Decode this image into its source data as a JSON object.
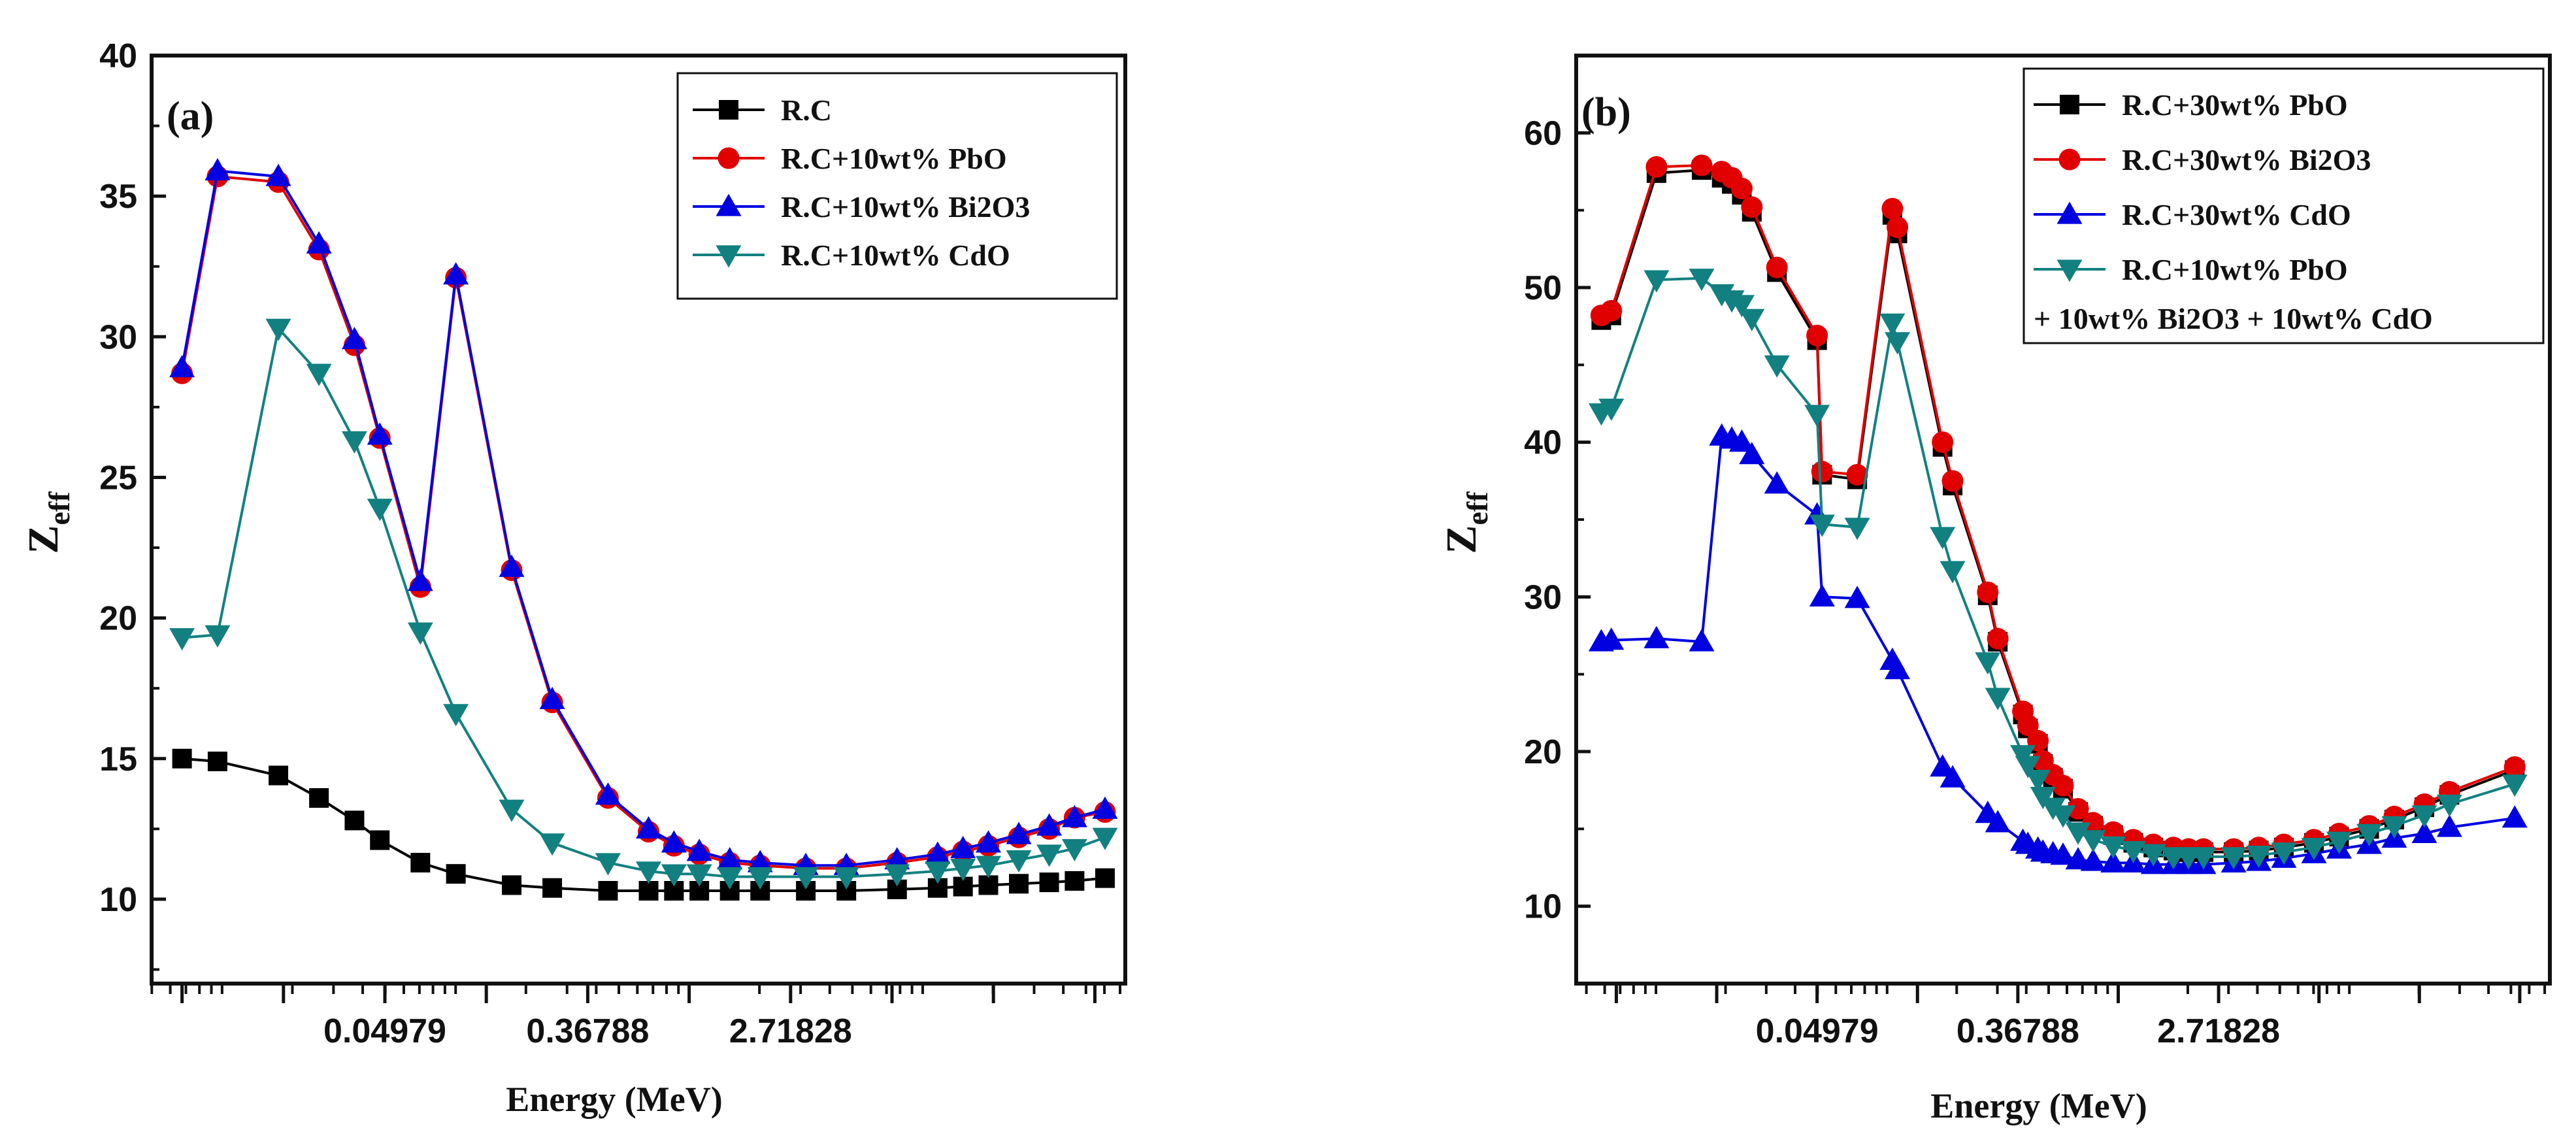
{
  "chart_data": [
    {
      "type": "line",
      "panel_label": "(a)",
      "xlabel": "Energy (MeV)",
      "ylabel": {
        "base": "Z",
        "sub": "eff"
      },
      "xscale": "ln",
      "xlim_ln": [
        -5.3,
        4.3
      ],
      "xticks": [
        {
          "label": "0.04979",
          "ln": -3
        },
        {
          "label": "0.36788",
          "ln": -1
        },
        {
          "label": "2.71828",
          "ln": 1
        }
      ],
      "ylim": [
        7,
        40
      ],
      "yticks": [
        10,
        15,
        20,
        25,
        30,
        35,
        40
      ],
      "legend_position": "top-right",
      "series": [
        {
          "name": "R.C",
          "color": "#000000",
          "marker": "square",
          "x_ln": [
            -5.0,
            -4.65,
            -4.05,
            -3.65,
            -3.3,
            -3.05,
            -2.65,
            -2.3,
            -1.75,
            -1.35,
            -0.8,
            -0.4,
            -0.15,
            0.1,
            0.4,
            0.7,
            1.15,
            1.55,
            2.05,
            2.45,
            2.7,
            2.95,
            3.25,
            3.55,
            3.8,
            4.1
          ],
          "values": [
            15.0,
            14.9,
            14.4,
            13.6,
            12.8,
            12.1,
            11.3,
            10.9,
            10.5,
            10.4,
            10.3,
            10.3,
            10.3,
            10.3,
            10.3,
            10.3,
            10.3,
            10.3,
            10.35,
            10.4,
            10.45,
            10.5,
            10.55,
            10.6,
            10.65,
            10.75
          ]
        },
        {
          "name": "R.C+10wt% PbO",
          "color": "#e00000",
          "marker": "circle",
          "x_ln": [
            -5.0,
            -4.65,
            -4.05,
            -3.65,
            -3.3,
            -3.05,
            -2.65,
            -2.3,
            -1.75,
            -1.35,
            -0.8,
            -0.4,
            -0.15,
            0.1,
            0.4,
            0.7,
            1.15,
            1.55,
            2.05,
            2.45,
            2.7,
            2.95,
            3.25,
            3.55,
            3.8,
            4.1
          ],
          "values": [
            28.7,
            35.7,
            35.5,
            33.1,
            29.7,
            26.4,
            21.1,
            32.1,
            21.7,
            17.0,
            13.6,
            12.4,
            11.9,
            11.6,
            11.3,
            11.2,
            11.1,
            11.1,
            11.3,
            11.5,
            11.7,
            11.9,
            12.2,
            12.5,
            12.9,
            13.1
          ]
        },
        {
          "name": "R.C+10wt% Bi2O3",
          "color": "#0000e0",
          "marker": "triangle-up",
          "x_ln": [
            -5.0,
            -4.65,
            -4.05,
            -3.65,
            -3.3,
            -3.05,
            -2.65,
            -2.3,
            -1.75,
            -1.35,
            -0.8,
            -0.4,
            -0.15,
            0.1,
            0.4,
            0.7,
            1.15,
            1.55,
            2.05,
            2.45,
            2.7,
            2.95,
            3.25,
            3.55,
            3.8,
            4.1
          ],
          "values": [
            28.9,
            35.9,
            35.7,
            33.3,
            29.9,
            26.5,
            21.3,
            32.2,
            21.8,
            17.1,
            13.7,
            12.5,
            12.0,
            11.7,
            11.4,
            11.3,
            11.2,
            11.2,
            11.4,
            11.6,
            11.8,
            12.0,
            12.3,
            12.6,
            12.9,
            13.2
          ]
        },
        {
          "name": "R.C+10wt% CdO",
          "color": "#128080",
          "marker": "triangle-down",
          "x_ln": [
            -5.0,
            -4.65,
            -4.05,
            -3.65,
            -3.3,
            -3.05,
            -2.65,
            -2.3,
            -1.75,
            -1.35,
            -0.8,
            -0.4,
            -0.15,
            0.1,
            0.4,
            0.7,
            1.15,
            1.55,
            2.05,
            2.45,
            2.7,
            2.95,
            3.25,
            3.55,
            3.8,
            4.1
          ],
          "values": [
            19.3,
            19.4,
            30.3,
            28.7,
            26.3,
            23.9,
            19.5,
            16.6,
            13.2,
            12.0,
            11.3,
            11.0,
            10.9,
            10.9,
            10.8,
            10.8,
            10.8,
            10.8,
            10.9,
            11.0,
            11.1,
            11.2,
            11.4,
            11.6,
            11.8,
            12.2
          ]
        }
      ]
    },
    {
      "type": "line",
      "panel_label": "(b)",
      "xlabel": "Energy (MeV)",
      "ylabel": {
        "base": "Z",
        "sub": "eff"
      },
      "xscale": "ln",
      "xlim_ln": [
        -5.4,
        4.3
      ],
      "xticks": [
        {
          "label": "0.04979",
          "ln": -3
        },
        {
          "label": "0.36788",
          "ln": -1
        },
        {
          "label": "2.71828",
          "ln": 1
        }
      ],
      "ylim": [
        5,
        65
      ],
      "yticks": [
        10,
        20,
        30,
        40,
        50,
        60
      ],
      "legend_position": "top-right",
      "series": [
        {
          "name": "R.C+30wt% PbO",
          "color": "#000000",
          "marker": "square",
          "x_ln": [
            -5.15,
            -5.05,
            -4.6,
            -4.15,
            -3.95,
            -3.85,
            -3.75,
            -3.65,
            -3.4,
            -3.0,
            -2.95,
            -2.6,
            -2.25,
            -2.2,
            -1.75,
            -1.65,
            -1.3,
            -1.2,
            -0.95,
            -0.9,
            -0.8,
            -0.75,
            -0.65,
            -0.55,
            -0.4,
            -0.25,
            -0.05,
            0.15,
            0.35,
            0.55,
            0.7,
            0.85,
            1.15,
            1.4,
            1.65,
            1.95,
            2.2,
            2.5,
            2.75,
            3.05,
            3.3,
            3.95
          ],
          "values": [
            47.9,
            48.2,
            57.4,
            57.6,
            57.1,
            56.7,
            56.0,
            54.9,
            51.0,
            46.6,
            37.9,
            37.6,
            54.7,
            53.5,
            39.7,
            37.2,
            30.1,
            27.1,
            22.4,
            21.5,
            20.5,
            19.2,
            18.3,
            17.6,
            16.1,
            15.2,
            14.6,
            14.1,
            13.8,
            13.6,
            13.5,
            13.5,
            13.5,
            13.6,
            13.8,
            14.1,
            14.5,
            15.0,
            15.6,
            16.4,
            17.2,
            18.8
          ]
        },
        {
          "name": "R.C+30wt% Bi2O3",
          "color": "#e00000",
          "marker": "circle",
          "x_ln": [
            -5.15,
            -5.05,
            -4.6,
            -4.15,
            -3.95,
            -3.85,
            -3.75,
            -3.65,
            -3.4,
            -3.0,
            -2.95,
            -2.6,
            -2.25,
            -2.2,
            -1.75,
            -1.65,
            -1.3,
            -1.2,
            -0.95,
            -0.9,
            -0.8,
            -0.75,
            -0.65,
            -0.55,
            -0.4,
            -0.25,
            -0.05,
            0.15,
            0.35,
            0.55,
            0.7,
            0.85,
            1.15,
            1.4,
            1.65,
            1.95,
            2.2,
            2.5,
            2.75,
            3.05,
            3.3,
            3.95
          ],
          "values": [
            48.2,
            48.5,
            57.8,
            57.9,
            57.5,
            57.1,
            56.4,
            55.2,
            51.3,
            46.9,
            38.1,
            37.9,
            55.1,
            53.9,
            40.0,
            37.5,
            30.3,
            27.3,
            22.6,
            21.7,
            20.7,
            19.4,
            18.5,
            17.8,
            16.3,
            15.4,
            14.8,
            14.3,
            14.0,
            13.8,
            13.7,
            13.7,
            13.7,
            13.8,
            14.0,
            14.3,
            14.7,
            15.2,
            15.8,
            16.6,
            17.4,
            19.0
          ]
        },
        {
          "name": "R.C+30wt% CdO",
          "color": "#0000e0",
          "marker": "triangle-up",
          "x_ln": [
            -5.15,
            -5.05,
            -4.6,
            -4.15,
            -3.95,
            -3.85,
            -3.75,
            -3.65,
            -3.4,
            -3.0,
            -2.95,
            -2.6,
            -2.25,
            -2.2,
            -1.75,
            -1.65,
            -1.3,
            -1.2,
            -0.95,
            -0.9,
            -0.8,
            -0.75,
            -0.65,
            -0.55,
            -0.4,
            -0.25,
            -0.05,
            0.15,
            0.35,
            0.55,
            0.7,
            0.85,
            1.15,
            1.4,
            1.65,
            1.95,
            2.2,
            2.5,
            2.75,
            3.05,
            3.3,
            3.95
          ],
          "values": [
            27.1,
            27.2,
            27.3,
            27.1,
            40.4,
            40.2,
            40.0,
            39.2,
            37.3,
            35.3,
            30.0,
            29.9,
            25.9,
            25.3,
            19.0,
            18.3,
            16.0,
            15.4,
            14.2,
            14.0,
            13.7,
            13.5,
            13.4,
            13.3,
            13.0,
            12.9,
            12.8,
            12.8,
            12.7,
            12.7,
            12.7,
            12.7,
            12.8,
            12.9,
            13.1,
            13.4,
            13.7,
            14.0,
            14.4,
            14.7,
            15.1,
            15.7
          ]
        },
        {
          "name": "R.C+10wt% PbO\n+ 10wt% Bi2O3 + 10wt% CdO",
          "color": "#128080",
          "marker": "triangle-down",
          "x_ln": [
            -5.15,
            -5.05,
            -4.6,
            -4.15,
            -3.95,
            -3.85,
            -3.75,
            -3.65,
            -3.4,
            -3.0,
            -2.95,
            -2.6,
            -2.25,
            -2.2,
            -1.75,
            -1.65,
            -1.3,
            -1.2,
            -0.95,
            -0.9,
            -0.8,
            -0.75,
            -0.65,
            -0.55,
            -0.4,
            -0.25,
            -0.05,
            0.15,
            0.35,
            0.55,
            0.7,
            0.85,
            1.15,
            1.4,
            1.65,
            1.95,
            2.2,
            2.5,
            2.75,
            3.05,
            3.3,
            3.95
          ],
          "values": [
            41.9,
            42.2,
            50.5,
            50.6,
            49.6,
            49.2,
            48.9,
            48.0,
            45.0,
            41.8,
            34.7,
            34.5,
            47.7,
            46.5,
            33.9,
            31.7,
            25.8,
            23.5,
            19.8,
            19.1,
            18.2,
            17.1,
            16.4,
            15.9,
            14.8,
            14.3,
            13.9,
            13.6,
            13.4,
            13.2,
            13.2,
            13.2,
            13.2,
            13.3,
            13.5,
            13.8,
            14.2,
            14.7,
            15.2,
            15.9,
            16.6,
            17.9
          ]
        }
      ]
    }
  ],
  "panels": [
    {
      "label": "(a)",
      "xlabel": "Energy (MeV)",
      "ylabel_base": "Z",
      "ylabel_sub": "eff",
      "legend": [
        "R.C",
        "R.C+10wt% PbO",
        "R.C+10wt% Bi2O3",
        "R.C+10wt% CdO"
      ]
    },
    {
      "label": "(b)",
      "xlabel": "Energy (MeV)",
      "ylabel_base": "Z",
      "ylabel_sub": "eff",
      "legend": [
        "R.C+30wt% PbO",
        "R.C+30wt% Bi2O3",
        "R.C+30wt% CdO",
        "R.C+10wt% PbO"
      ],
      "legend_extra_line": "+ 10wt% Bi2O3 + 10wt% CdO"
    }
  ]
}
